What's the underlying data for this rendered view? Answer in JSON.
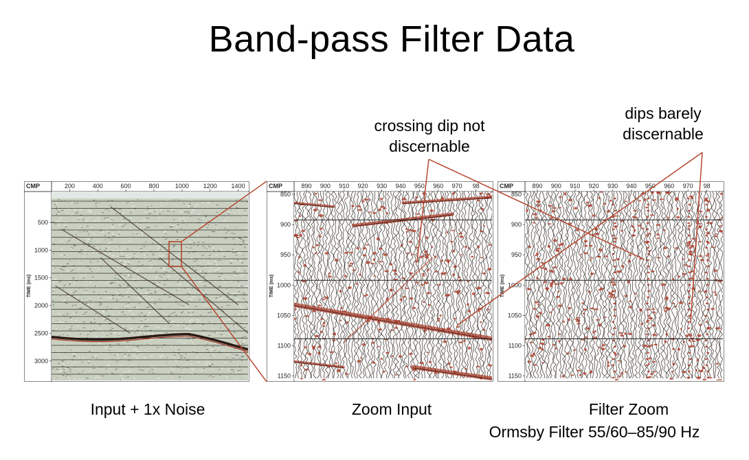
{
  "title": "Band-pass Filter Data",
  "annotations": {
    "crossing": [
      "crossing dip not",
      "discernable"
    ],
    "dips": [
      "dips barely",
      "discernable"
    ]
  },
  "panels": [
    {
      "id": "input",
      "caption": "Input + 1x Noise",
      "axis_label_top": "CMP",
      "axis_label_side": "TIME (ms)",
      "x_ticks": [
        "200",
        "400",
        "600",
        "800",
        "1000",
        "1200",
        "1400"
      ],
      "y_ticks": [
        "500",
        "1000",
        "1500",
        "2000",
        "2500",
        "3000"
      ]
    },
    {
      "id": "zoom",
      "caption": "Zoom Input",
      "axis_label_top": "CMP",
      "axis_label_side": "TIME (ms)",
      "x_ticks": [
        "890",
        "900",
        "910",
        "920",
        "930",
        "940",
        "950",
        "960",
        "970",
        "98"
      ],
      "y_ticks": [
        "850",
        "900",
        "950",
        "1000",
        "1050",
        "1100",
        "1150"
      ]
    },
    {
      "id": "filter",
      "caption": "Filter Zoom",
      "axis_label_top": "CMP",
      "axis_label_side": "TIME (ms)",
      "x_ticks": [
        "890",
        "900",
        "910",
        "920",
        "930",
        "940",
        "950",
        "960",
        "970",
        "98"
      ],
      "y_ticks": [
        "850",
        "900",
        "950",
        "1000",
        "1050",
        "1100",
        "1150"
      ]
    }
  ],
  "filter_caption_2": "Ormsby Filter  55/60–85/90 Hz",
  "colors": {
    "accent": "#b5462e",
    "seismic_dark": "#1c1c1c",
    "seismic_red": "#a8321f",
    "noise_bg": "#c9cfc0"
  }
}
